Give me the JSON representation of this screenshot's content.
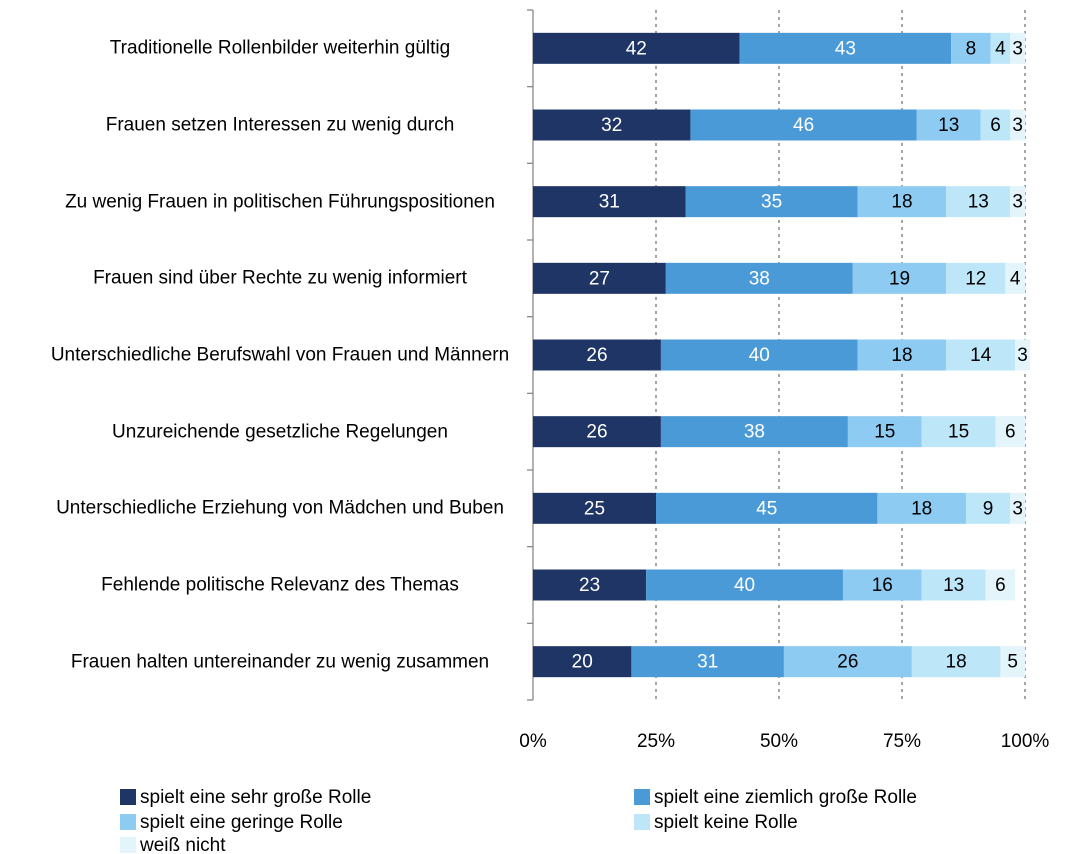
{
  "chart_data": {
    "type": "stacked-bar-horizontal",
    "categories": [
      "Traditionelle Rollenbilder weiterhin gültig",
      "Frauen setzen Interessen zu wenig durch",
      "Zu wenig Frauen in politischen Führungspositionen",
      "Frauen sind über Rechte zu wenig informiert",
      "Unterschiedliche Berufswahl von Frauen und Männern",
      "Unzureichende gesetzliche Regelungen",
      "Unterschiedliche Erziehung von Mädchen und Buben",
      "Fehlende politische Relevanz des Themas",
      "Frauen halten untereinander zu wenig zusammen"
    ],
    "series": [
      {
        "name": "spielt eine sehr große Rolle",
        "color": "#1f3566",
        "values": [
          42,
          32,
          31,
          27,
          26,
          26,
          25,
          23,
          20
        ]
      },
      {
        "name": "spielt eine ziemlich große Rolle",
        "color": "#4a9ad8",
        "values": [
          43,
          46,
          35,
          38,
          40,
          38,
          45,
          40,
          31
        ]
      },
      {
        "name": "spielt eine geringe Rolle",
        "color": "#8dcbf2",
        "values": [
          8,
          13,
          18,
          19,
          18,
          15,
          18,
          16,
          26
        ]
      },
      {
        "name": "spielt keine Rolle",
        "color": "#bee6f9",
        "values": [
          4,
          6,
          13,
          12,
          14,
          15,
          9,
          13,
          18
        ]
      },
      {
        "name": "weiß nicht",
        "color": "#e3f4fb",
        "values": [
          3,
          3,
          3,
          4,
          3,
          6,
          3,
          6,
          5
        ]
      }
    ],
    "xlim": [
      0,
      100
    ],
    "xticks": [
      {
        "value": 0,
        "label": "0%"
      },
      {
        "value": 25,
        "label": "25%"
      },
      {
        "value": 50,
        "label": "50%"
      },
      {
        "value": 75,
        "label": "75%"
      },
      {
        "value": 100,
        "label": "100%"
      }
    ],
    "grid": true,
    "legend": "bottom"
  }
}
